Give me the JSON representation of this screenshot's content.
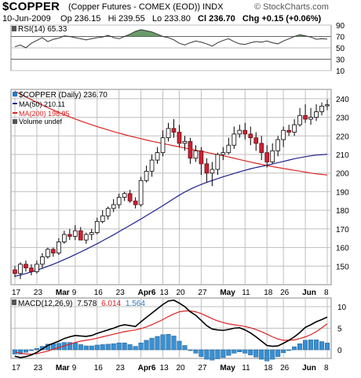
{
  "header": {
    "symbol": "$COPPER",
    "description": "(Copper Futures - COMEX (EOD)) INDX",
    "watermark": "© StockCharts.com",
    "date": "10-Jun-2009",
    "op_label": "Op",
    "op": "236.15",
    "hi_label": "Hi",
    "hi": "239.55",
    "lo_label": "Lo",
    "lo": "233.80",
    "cl_label": "Cl",
    "cl": "236.70",
    "chg_label": "Chg",
    "chg": "+0.15 (+0.06%)"
  },
  "colors": {
    "up_candle": "#ffffff",
    "down_candle": "#cc2233",
    "ma50": "#1f1f8f",
    "ma200": "#dd2222",
    "rsi_line": "#333333",
    "rsi_fill": "#3a7a3a",
    "macd_line": "#000000",
    "signal_line": "#dd2222",
    "histogram": "#3a8fd0",
    "grid": "#bfbfbf",
    "accent_blue": "#2e78c0"
  },
  "chart_data": [
    {
      "type": "line",
      "panel": "RSI",
      "legend": "RSI(14) 65.33",
      "ylim": [
        10,
        90
      ],
      "yticks": [
        90,
        70,
        50,
        30,
        10
      ],
      "series": [
        {
          "name": "RSI(14)",
          "values": [
            52,
            55,
            50,
            58,
            63,
            68,
            61,
            65,
            67,
            71,
            70,
            68,
            66,
            64,
            66,
            68,
            69,
            72,
            68,
            66,
            70,
            74,
            79,
            82,
            80,
            78,
            74,
            70,
            68,
            64,
            58,
            55,
            59,
            62,
            60,
            57,
            53,
            59,
            63,
            66,
            61,
            57,
            56,
            59,
            61,
            60,
            62,
            59,
            57,
            62,
            66,
            70,
            73,
            71,
            69,
            65,
            66,
            65.33
          ]
        }
      ]
    },
    {
      "type": "candlestick",
      "panel": "price",
      "ylim": [
        140,
        245
      ],
      "yticks": [
        150,
        160,
        170,
        180,
        190,
        200,
        210,
        220,
        230,
        240
      ],
      "x_labels": [
        "17",
        "23",
        "Mar",
        "9",
        "16",
        "23",
        "Apr6",
        "13",
        "20",
        "27",
        "May",
        "11",
        "18",
        "26",
        "Jun",
        "8"
      ],
      "legend": [
        "$COPPER (Daily) 236.70",
        "MA(50) 210.11",
        "MA(200) 198.95",
        "Volume undef"
      ],
      "open": [
        148,
        146,
        151,
        149,
        147,
        151,
        155,
        159,
        157,
        163,
        167,
        166,
        169,
        164,
        167,
        168,
        174,
        177,
        181,
        183,
        187,
        189,
        185,
        183,
        196,
        201,
        207,
        211,
        219,
        224,
        222,
        216,
        217,
        208,
        212,
        205,
        200,
        202,
        210,
        211,
        215,
        221,
        223,
        221,
        219,
        216,
        211,
        206,
        212,
        218,
        223,
        222,
        226,
        231,
        229,
        230,
        233,
        236.15
      ],
      "high": [
        150,
        152,
        153,
        151,
        153,
        157,
        160,
        160,
        165,
        169,
        170,
        172,
        171,
        168,
        170,
        176,
        180,
        182,
        186,
        189,
        190,
        191,
        187,
        198,
        204,
        210,
        214,
        223,
        227,
        229,
        226,
        220,
        219,
        215,
        214,
        208,
        206,
        211,
        214,
        219,
        225,
        226,
        227,
        225,
        222,
        220,
        215,
        216,
        220,
        225,
        226,
        229,
        235,
        237,
        235,
        237,
        238,
        239.55
      ],
      "low": [
        144,
        143,
        147,
        145,
        146,
        149,
        154,
        155,
        156,
        162,
        164,
        164,
        164,
        162,
        164,
        167,
        173,
        175,
        179,
        181,
        185,
        184,
        181,
        182,
        195,
        198,
        205,
        209,
        217,
        219,
        214,
        212,
        205,
        206,
        199,
        195,
        193,
        199,
        207,
        210,
        213,
        219,
        218,
        215,
        212,
        207,
        203,
        205,
        209,
        214,
        220,
        220,
        225,
        227,
        226,
        228,
        231,
        233.8
      ],
      "close": [
        146,
        151,
        149,
        147,
        151,
        155,
        159,
        157,
        163,
        167,
        166,
        169,
        164,
        167,
        168,
        174,
        177,
        181,
        183,
        187,
        189,
        185,
        183,
        196,
        201,
        207,
        211,
        219,
        224,
        222,
        216,
        217,
        208,
        212,
        205,
        200,
        202,
        210,
        211,
        215,
        221,
        223,
        221,
        219,
        216,
        211,
        206,
        212,
        218,
        223,
        222,
        226,
        231,
        229,
        230,
        233,
        236,
        236.7
      ],
      "series": [
        {
          "name": "MA(50)",
          "values": [
            144.5,
            145.2,
            146.0,
            146.9,
            147.8,
            148.8,
            149.9,
            151.0,
            152.2,
            153.5,
            154.8,
            156.2,
            157.6,
            159.0,
            160.5,
            162.0,
            163.6,
            165.2,
            166.8,
            168.5,
            170.2,
            171.9,
            173.6,
            175.3,
            177.1,
            178.9,
            180.7,
            182.5,
            184.4,
            186.3,
            188.1,
            189.8,
            191.3,
            192.7,
            193.9,
            195.0,
            196.0,
            197.0,
            198.0,
            198.9,
            199.8,
            200.7,
            201.5,
            202.3,
            203.0,
            203.6,
            204.2,
            204.9,
            205.6,
            206.3,
            207.0,
            207.7,
            208.3,
            208.8,
            209.3,
            209.7,
            209.9,
            210.11
          ]
        },
        {
          "name": "MA(200)",
          "values": [
            244.0,
            242.5,
            241.0,
            239.5,
            238.0,
            236.6,
            235.2,
            233.9,
            232.6,
            231.4,
            230.2,
            229.1,
            228.0,
            227.0,
            226.0,
            225.0,
            224.1,
            223.2,
            222.3,
            221.5,
            220.7,
            219.9,
            219.2,
            218.5,
            217.8,
            217.1,
            216.5,
            215.9,
            215.3,
            214.7,
            214.1,
            213.5,
            212.9,
            212.3,
            211.7,
            211.1,
            210.5,
            209.9,
            209.3,
            208.7,
            208.0,
            207.3,
            206.6,
            205.9,
            205.3,
            204.7,
            204.1,
            203.5,
            203.0,
            202.5,
            202.0,
            201.5,
            201.0,
            200.5,
            200.0,
            199.6,
            199.3,
            198.95
          ]
        }
      ]
    },
    {
      "type": "line",
      "panel": "MACD",
      "legend": [
        "MACD(12,26,9)",
        "7.578",
        "6.014",
        "1.564"
      ],
      "ylim": [
        -2,
        12
      ],
      "yticks": [
        10,
        5,
        0
      ],
      "series": [
        {
          "name": "MACD",
          "values": [
            -1.5,
            -1.8,
            -1.6,
            -1.2,
            -0.6,
            0.2,
            1.0,
            1.5,
            2.0,
            2.6,
            3.0,
            3.3,
            3.2,
            3.1,
            3.3,
            3.8,
            4.2,
            4.6,
            5.0,
            5.5,
            5.8,
            5.6,
            5.4,
            6.5,
            7.5,
            8.5,
            9.5,
            10.5,
            11.3,
            11.5,
            10.8,
            10.0,
            8.8,
            8.0,
            6.8,
            5.6,
            4.8,
            4.6,
            4.5,
            4.7,
            5.0,
            5.1,
            4.6,
            3.9,
            3.0,
            2.0,
            1.0,
            0.8,
            0.9,
            1.5,
            2.2,
            3.0,
            4.0,
            5.2,
            5.8,
            6.5,
            7.0,
            7.578
          ]
        },
        {
          "name": "Signal",
          "values": [
            -0.5,
            -0.8,
            -1.0,
            -1.0,
            -0.9,
            -0.6,
            -0.3,
            0.1,
            0.5,
            0.9,
            1.3,
            1.7,
            2.0,
            2.2,
            2.4,
            2.7,
            3.0,
            3.3,
            3.6,
            3.9,
            4.2,
            4.4,
            4.6,
            4.9,
            5.3,
            5.8,
            6.4,
            7.0,
            7.7,
            8.3,
            8.8,
            9.0,
            9.0,
            8.8,
            8.4,
            7.8,
            7.2,
            6.7,
            6.3,
            6.0,
            5.8,
            5.6,
            5.4,
            5.1,
            4.7,
            4.2,
            3.6,
            3.0,
            2.5,
            2.2,
            2.2,
            2.3,
            2.6,
            3.0,
            3.5,
            4.2,
            5.1,
            6.014
          ]
        },
        {
          "name": "Histogram",
          "values": [
            -1.0,
            -1.0,
            -0.6,
            -0.2,
            0.3,
            0.8,
            1.3,
            1.4,
            1.5,
            1.7,
            1.7,
            1.6,
            1.2,
            0.9,
            0.9,
            1.1,
            1.2,
            1.3,
            1.4,
            1.6,
            1.6,
            1.2,
            0.8,
            1.6,
            2.2,
            2.7,
            3.1,
            3.5,
            3.6,
            3.2,
            2.0,
            1.0,
            -0.2,
            -0.8,
            -1.6,
            -2.2,
            -2.4,
            -2.1,
            -1.8,
            -1.3,
            -0.8,
            -0.5,
            -0.8,
            -1.2,
            -1.7,
            -2.2,
            -2.6,
            -2.2,
            -1.6,
            -0.7,
            0.0,
            0.7,
            1.4,
            2.2,
            2.3,
            2.3,
            1.9,
            1.564
          ]
        }
      ]
    }
  ]
}
